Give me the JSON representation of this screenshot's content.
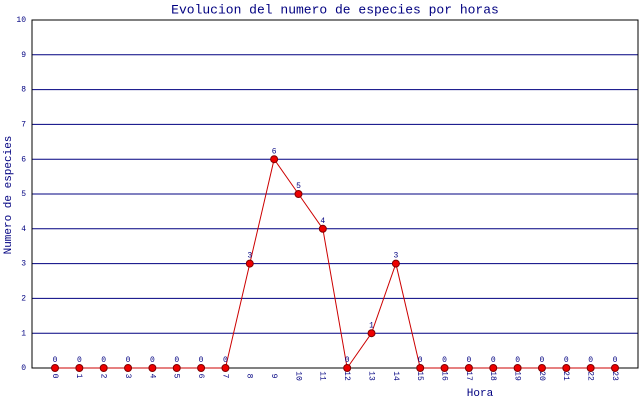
{
  "chart_data": {
    "type": "line",
    "title": "Evolucion del numero de especies por horas",
    "x_label": "Hora",
    "y_label": "Numero de especies",
    "categories": [
      "0",
      "1",
      "2",
      "3",
      "4",
      "5",
      "6",
      "7",
      "8",
      "9",
      "10",
      "11",
      "12",
      "13",
      "14",
      "15",
      "16",
      "17",
      "18",
      "19",
      "20",
      "21",
      "22",
      "23"
    ],
    "series": [
      {
        "name": "especies",
        "color": "#cc0000",
        "values": [
          0,
          0,
          0,
          0,
          0,
          0,
          0,
          0,
          3,
          6,
          5,
          4,
          0,
          1,
          3,
          0,
          0,
          0,
          0,
          0,
          0,
          0,
          0,
          0
        ]
      }
    ],
    "ylim": [
      0,
      10
    ],
    "yticks": [
      0,
      1,
      2,
      3,
      4,
      5,
      6,
      7,
      8,
      9,
      10
    ],
    "grid": true,
    "data_labels": true
  }
}
